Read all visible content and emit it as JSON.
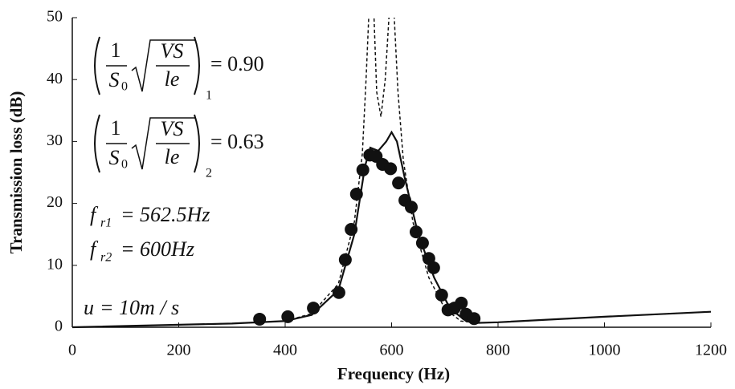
{
  "chart_data": {
    "type": "line",
    "x_label": "Frequency (Hz)",
    "y_label": "Transmission loss (dB)",
    "xlim": [
      0,
      1200
    ],
    "xticks": [
      0,
      200,
      400,
      600,
      800,
      1000,
      1200
    ],
    "ylim": [
      0,
      50
    ],
    "yticks": [
      0,
      10,
      20,
      30,
      40,
      50
    ],
    "series": [
      {
        "style": "dots",
        "color": "#111111",
        "x": [
          352,
          405,
          453,
          501,
          513,
          524,
          534,
          546,
          559,
          571,
          583,
          598,
          613,
          625,
          637,
          646,
          658,
          670,
          679,
          694,
          706,
          718,
          731,
          740,
          755
        ],
        "values": [
          1.3,
          1.7,
          3.1,
          5.6,
          10.9,
          15.8,
          21.5,
          25.4,
          27.8,
          27.6,
          26.3,
          25.6,
          23.3,
          20.5,
          19.4,
          15.4,
          13.6,
          11.1,
          9.6,
          5.2,
          2.8,
          3.1,
          3.9,
          2.1,
          1.4
        ]
      },
      {
        "style": "solid",
        "color": "#111111",
        "x": [
          0,
          300,
          400,
          450,
          500,
          530,
          550,
          560,
          575,
          590,
          600,
          610,
          625,
          650,
          680,
          710,
          740,
          760,
          800,
          1000,
          1200
        ],
        "values": [
          0,
          0.6,
          1.0,
          2,
          6,
          15,
          26,
          29,
          28.5,
          30,
          31.5,
          30,
          24,
          15,
          8,
          3,
          1,
          0.7,
          0.8,
          1.7,
          2.5
        ]
      },
      {
        "style": "dashed",
        "color": "#111111",
        "x": [
          0,
          300,
          400,
          450,
          500,
          530,
          545,
          552,
          557,
          562,
          567,
          572,
          580,
          588,
          595,
          600,
          605,
          612,
          622,
          640,
          670,
          700,
          730,
          760,
          800,
          1000,
          1200
        ],
        "values": [
          0,
          0.6,
          1.0,
          2.2,
          7,
          17,
          28,
          40,
          50,
          60,
          50,
          38,
          34,
          40,
          50,
          60,
          50,
          38,
          27,
          17,
          8,
          3,
          1,
          0.7,
          0.8,
          1.7,
          2.5
        ]
      }
    ],
    "formulas": [
      {
        "numerator": "1",
        "denominator": "S",
        "denominator_sub": "0",
        "radicand_top": "VS",
        "radicand_bottom": "le",
        "subscript": "1",
        "value": "= 0.90"
      },
      {
        "numerator": "1",
        "denominator": "S",
        "denominator_sub": "0",
        "radicand_top": "VS",
        "radicand_bottom": "le",
        "subscript": "2",
        "value": "= 0.63"
      }
    ],
    "notes": [
      {
        "symbol": "f",
        "subscript": "r1",
        "text": "= 562.5Hz"
      },
      {
        "symbol": "f",
        "subscript": "r2",
        "text": "= 600Hz"
      },
      {
        "symbol": "u",
        "subscript": "",
        "text": "= 10m / s"
      }
    ]
  }
}
